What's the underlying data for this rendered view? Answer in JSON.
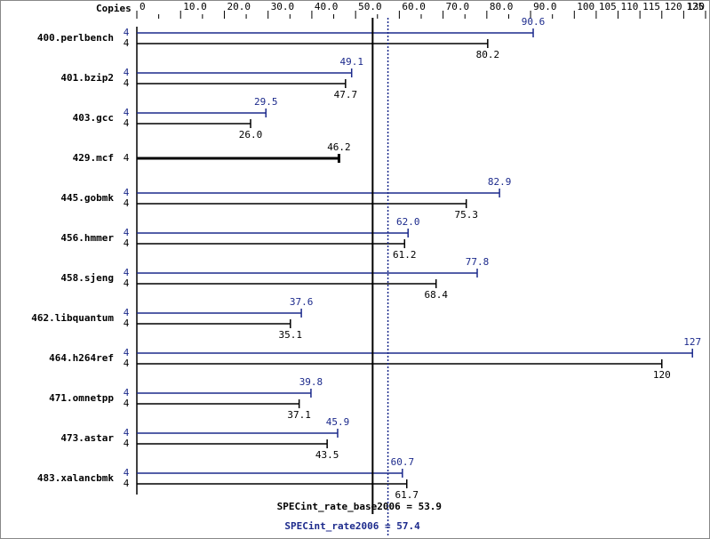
{
  "chart_data": {
    "type": "bar",
    "orientation": "horizontal",
    "axis_label": "Copies",
    "categories": [
      "400.perlbench",
      "401.bzip2",
      "403.gcc",
      "429.mcf",
      "445.gobmk",
      "456.hmmer",
      "458.sjeng",
      "462.libquantum",
      "464.h264ref",
      "471.omnetpp",
      "473.astar",
      "483.xalancbmk"
    ],
    "series": [
      {
        "color": "#1c2a8c",
        "copies": [
          4,
          4,
          4,
          null,
          4,
          4,
          4,
          4,
          4,
          4,
          4,
          4
        ],
        "values": [
          90.6,
          49.1,
          29.5,
          null,
          82.9,
          62.0,
          77.8,
          37.6,
          127,
          39.8,
          45.9,
          60.7
        ],
        "value_labels": [
          "90.6",
          "49.1",
          "29.5",
          null,
          "82.9",
          "62.0",
          "77.8",
          "37.6",
          "127",
          "39.8",
          "45.9",
          "60.7"
        ]
      },
      {
        "color": "#000000",
        "copies": [
          4,
          4,
          4,
          4,
          4,
          4,
          4,
          4,
          4,
          4,
          4,
          4
        ],
        "values": [
          80.2,
          47.7,
          26.0,
          46.2,
          75.3,
          61.2,
          68.4,
          35.1,
          120,
          37.1,
          43.5,
          61.7
        ],
        "value_labels": [
          "80.2",
          "47.7",
          "26.0",
          "46.2",
          "75.3",
          "61.2",
          "68.4",
          "35.1",
          "120",
          "37.1",
          "43.5",
          "61.7"
        ]
      }
    ],
    "xlim": [
      0,
      130
    ],
    "xticks": [
      0,
      {
        "value": 10,
        "label": "10.0"
      },
      {
        "value": 20,
        "label": "20.0"
      },
      {
        "value": 30,
        "label": "30.0"
      },
      {
        "value": 40,
        "label": "40.0"
      },
      {
        "value": 50,
        "label": "50.0"
      },
      {
        "value": 60,
        "label": "60.0"
      },
      {
        "value": 70,
        "label": "70.0"
      },
      {
        "value": 80,
        "label": "80.0"
      },
      {
        "value": 90,
        "label": "90.0"
      },
      100,
      105,
      110,
      115,
      120,
      125,
      130
    ],
    "xticks_minor": [
      5,
      15,
      25,
      35,
      45,
      55,
      65,
      75,
      85,
      95
    ],
    "reference_lines": [
      {
        "label": "SPECint_rate_base2006 = 53.9",
        "value": 53.9,
        "color": "#000000",
        "style": "solid"
      },
      {
        "label": "SPECint_rate2006 = 57.4",
        "value": 57.4,
        "color": "#1c2a8c",
        "style": "dotted"
      }
    ]
  }
}
